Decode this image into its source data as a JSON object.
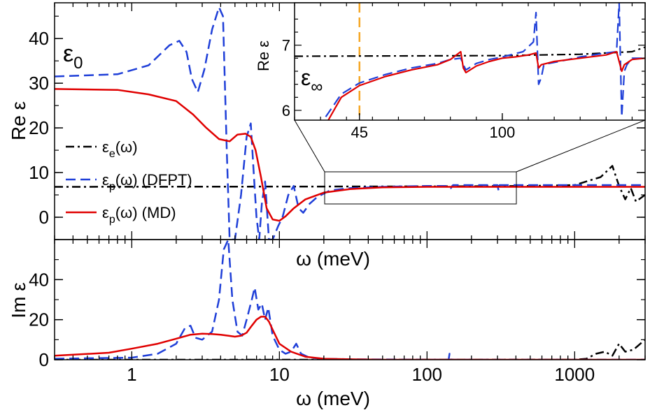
{
  "chart_data": [
    {
      "type": "line",
      "panel": "top",
      "ylabel": "Re ε",
      "xlabel": "ω (meV)",
      "xscale": "log",
      "xlim": [
        0.3,
        3000
      ],
      "ylim": [
        -5,
        48
      ],
      "yticks": [
        "0",
        "10",
        "20",
        "30",
        "40"
      ],
      "annotation": "ε0",
      "annotation_sub": "0",
      "annotation_main": "ε",
      "legend_position": "middle-left",
      "legend": [
        {
          "main": "ε",
          "sub": "e",
          "rest": "(ω)",
          "series": "eps_e"
        },
        {
          "main": "ε",
          "sub": "p",
          "rest": "(ω) (DFPT)",
          "series": "dfpt"
        },
        {
          "main": "ε",
          "sub": "p",
          "rest": "(ω) (MD)",
          "series": "md"
        }
      ],
      "series": [
        {
          "name": "εe(ω)",
          "id": "eps_e",
          "color": "#000000",
          "style": "dash-dot",
          "x": [
            0.3,
            100,
            500,
            1000,
            1500,
            1800,
            2000,
            2200,
            2400,
            2600,
            3000
          ],
          "y": [
            6.8,
            6.9,
            7.0,
            7.2,
            9.0,
            11.5,
            7.0,
            4.0,
            6.5,
            3.5,
            5.0
          ]
        },
        {
          "name": "εp(ω) (DFPT)",
          "id": "dfpt",
          "color": "#1f3fd8",
          "style": "dash",
          "x": [
            0.3,
            0.8,
            1.3,
            1.8,
            2.1,
            2.35,
            2.55,
            2.8,
            3.1,
            3.5,
            3.9,
            4.15,
            4.4,
            4.6,
            5.0,
            5.5,
            6.0,
            6.4,
            6.7,
            7.0,
            7.3,
            7.6,
            8.0,
            8.5,
            9.0,
            9.8,
            10.5,
            11.5,
            12.5,
            13.5,
            14.5,
            16,
            18,
            22,
            30,
            50,
            100,
            140,
            145,
            150,
            300,
            305,
            310,
            3000
          ],
          "y": [
            31.5,
            32,
            34,
            38.5,
            39.5,
            37,
            31,
            28,
            33,
            42,
            47,
            45,
            15,
            -5,
            -5,
            5,
            18,
            21,
            10,
            0,
            -5,
            3,
            8,
            -5,
            -5,
            -2,
            0,
            5,
            7,
            2,
            1,
            3,
            4.5,
            6,
            6.5,
            6.8,
            7.0,
            7.0,
            6.5,
            7.2,
            7.2,
            6.0,
            7.2,
            7.2
          ]
        },
        {
          "name": "εp(ω) (MD)",
          "id": "md",
          "color": "#e00000",
          "style": "solid",
          "x": [
            0.3,
            0.8,
            1.3,
            2.0,
            2.6,
            3.2,
            3.9,
            4.6,
            5.2,
            5.9,
            6.4,
            6.9,
            7.5,
            8.2,
            9.0,
            10.0,
            11.0,
            12.5,
            15,
            20,
            30,
            50,
            100,
            200,
            500,
            1000,
            3000
          ],
          "y": [
            28.7,
            28.5,
            27.5,
            26,
            23,
            20,
            17.5,
            17,
            18.5,
            18.7,
            18,
            15,
            9,
            2,
            -0.5,
            -0.8,
            0.2,
            2,
            4,
            5.5,
            6.3,
            6.7,
            6.8,
            6.8,
            6.8,
            6.8,
            6.8
          ]
        }
      ]
    },
    {
      "type": "line",
      "panel": "bottom",
      "ylabel": "Im ε",
      "xlabel": "ω (meV)",
      "xscale": "log",
      "xlim": [
        0.3,
        3000
      ],
      "ylim": [
        0,
        60
      ],
      "xticks": [
        "1",
        "10",
        "100",
        "1000"
      ],
      "yticks": [
        "0",
        "20",
        "40"
      ],
      "series": [
        {
          "name": "εe(ω)",
          "id": "eps_e",
          "color": "#000000",
          "style": "dash-dot",
          "x": [
            0.3,
            1000,
            1200,
            1400,
            1600,
            1800,
            2000,
            2200,
            2500,
            3000
          ],
          "y": [
            0,
            0,
            0.5,
            3,
            4,
            2,
            8,
            4,
            5,
            10
          ]
        },
        {
          "name": "εp(ω) (DFPT)",
          "id": "dfpt",
          "color": "#1f3fd8",
          "style": "dash",
          "x": [
            0.3,
            1.0,
            1.5,
            2.0,
            2.3,
            2.5,
            2.7,
            3.0,
            3.5,
            3.9,
            4.2,
            4.5,
            4.8,
            5.2,
            5.6,
            6.0,
            6.5,
            6.8,
            7.2,
            7.6,
            8.0,
            8.4,
            9.0,
            10,
            11,
            12,
            13,
            14,
            16,
            20,
            30,
            100,
            140,
            142,
            145,
            3000
          ],
          "y": [
            0.5,
            1,
            3,
            8,
            16,
            17,
            11,
            10,
            14,
            30,
            55,
            60,
            30,
            14,
            12,
            20,
            30,
            36,
            25,
            28,
            20,
            26,
            12,
            5,
            3,
            4,
            8,
            3,
            1,
            0.5,
            0.2,
            0,
            0,
            3,
            0,
            0
          ]
        },
        {
          "name": "εp(ω) (MD)",
          "id": "md",
          "color": "#e00000",
          "style": "solid",
          "x": [
            0.3,
            0.7,
            1.0,
            1.5,
            2.0,
            2.5,
            3.0,
            3.5,
            4.0,
            4.5,
            5.0,
            5.5,
            6.0,
            6.5,
            7.0,
            7.5,
            8.0,
            8.5,
            9.0,
            10,
            12,
            15,
            20,
            30,
            50,
            100,
            3000
          ],
          "y": [
            2,
            3.5,
            5.5,
            8,
            10.5,
            12.5,
            13,
            12.8,
            12.5,
            12,
            11.5,
            12,
            13.5,
            17,
            20,
            21.5,
            21.5,
            19,
            15,
            8,
            4,
            1.5,
            0.5,
            0.2,
            0,
            0,
            0
          ]
        }
      ]
    },
    {
      "type": "line",
      "panel": "inset",
      "ylabel": "Re ε",
      "xscale": "linear",
      "xlim": [
        20,
        155
      ],
      "ylim": [
        5.85,
        7.65
      ],
      "xticks": [
        "45",
        "100"
      ],
      "yticks": [
        "6",
        "7"
      ],
      "annotation_main": "ε",
      "annotation_sub": "∞",
      "vertical_marker": {
        "x": 45,
        "color": "#f5a623",
        "style": "dash"
      },
      "series": [
        {
          "name": "εe(ω)",
          "id": "eps_e",
          "color": "#000000",
          "style": "dash-dot",
          "x": [
            20,
            100,
            130,
            150,
            155
          ],
          "y": [
            6.83,
            6.84,
            6.86,
            6.9,
            6.97
          ]
        },
        {
          "name": "εp(ω) (DFPT)",
          "id": "dfpt",
          "color": "#1f3fd8",
          "style": "dash",
          "x": [
            32,
            38,
            45,
            55,
            65,
            75,
            80,
            84,
            85,
            86,
            90,
            95,
            100,
            105,
            108,
            112,
            113,
            114,
            115,
            116,
            118,
            122,
            130,
            140,
            144,
            145,
            146,
            147,
            148,
            150,
            155
          ],
          "y": [
            5.9,
            6.25,
            6.42,
            6.55,
            6.65,
            6.72,
            6.78,
            6.8,
            6.7,
            6.62,
            6.72,
            6.78,
            6.82,
            6.87,
            6.9,
            7.05,
            7.5,
            6.4,
            6.5,
            6.7,
            6.72,
            6.75,
            6.82,
            6.88,
            6.9,
            7.65,
            5.9,
            6.6,
            6.7,
            6.8,
            6.8
          ]
        },
        {
          "name": "εp(ω) (MD)",
          "id": "md",
          "color": "#e00000",
          "style": "solid",
          "x": [
            33,
            38,
            45,
            55,
            65,
            75,
            80,
            84,
            85,
            86,
            90,
            95,
            100,
            105,
            110,
            113,
            114,
            115,
            120,
            130,
            140,
            144,
            145,
            146,
            147,
            150,
            155
          ],
          "y": [
            5.85,
            6.2,
            6.38,
            6.52,
            6.62,
            6.7,
            6.78,
            6.9,
            6.65,
            6.58,
            6.68,
            6.75,
            6.8,
            6.82,
            6.85,
            6.88,
            6.65,
            6.7,
            6.75,
            6.8,
            6.85,
            6.9,
            6.75,
            6.6,
            6.7,
            6.78,
            6.8
          ]
        }
      ]
    }
  ]
}
